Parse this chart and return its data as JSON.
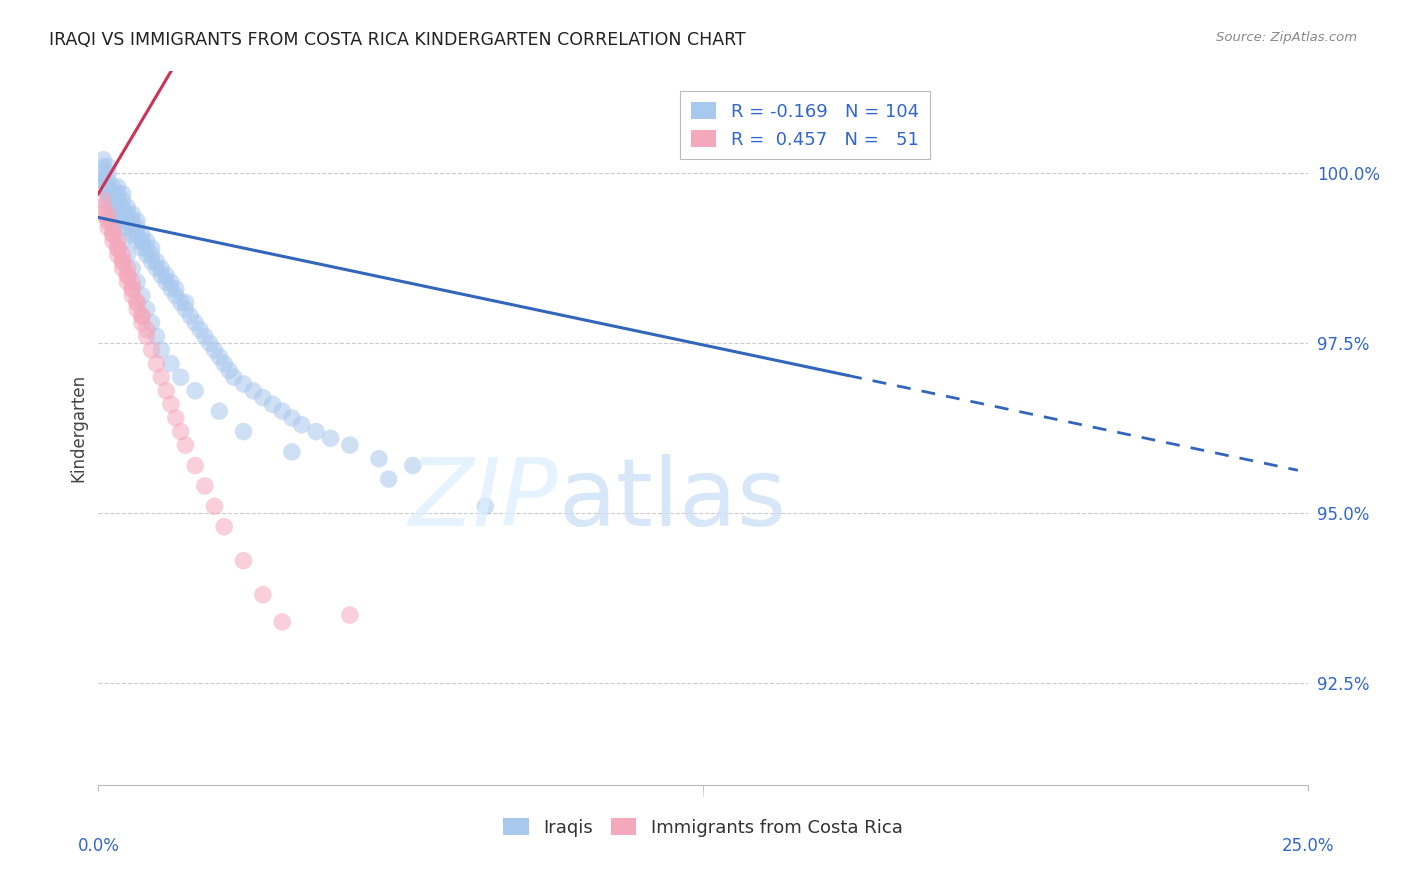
{
  "title": "IRAQI VS IMMIGRANTS FROM COSTA RICA KINDERGARTEN CORRELATION CHART",
  "source": "Source: ZipAtlas.com",
  "ylabel": "Kindergarten",
  "yticks": [
    92.5,
    95.0,
    97.5,
    100.0
  ],
  "ytick_labels": [
    "92.5%",
    "95.0%",
    "97.5%",
    "100.0%"
  ],
  "xlim": [
    0.0,
    0.25
  ],
  "ylim": [
    91.0,
    101.5
  ],
  "legend_labels": [
    "Iraqis",
    "Immigrants from Costa Rica"
  ],
  "blue_R": -0.169,
  "blue_N": 104,
  "pink_R": 0.457,
  "pink_N": 51,
  "blue_color": "#a8c8ee",
  "pink_color": "#f4a8bc",
  "blue_line_color": "#3366bb",
  "pink_line_color": "#cc3355",
  "blue_line_solid_end": 0.155,
  "blue_line_dashed_end": 0.248,
  "pink_line_start": 0.0,
  "pink_line_end": 0.052,
  "blue_scatter": {
    "x": [
      0.001,
      0.001,
      0.001,
      0.001,
      0.001,
      0.002,
      0.002,
      0.002,
      0.002,
      0.002,
      0.003,
      0.003,
      0.003,
      0.003,
      0.004,
      0.004,
      0.004,
      0.004,
      0.004,
      0.005,
      0.005,
      0.005,
      0.005,
      0.005,
      0.006,
      0.006,
      0.006,
      0.006,
      0.007,
      0.007,
      0.007,
      0.007,
      0.008,
      0.008,
      0.008,
      0.008,
      0.009,
      0.009,
      0.009,
      0.01,
      0.01,
      0.01,
      0.011,
      0.011,
      0.011,
      0.012,
      0.012,
      0.013,
      0.013,
      0.014,
      0.014,
      0.015,
      0.015,
      0.016,
      0.016,
      0.017,
      0.018,
      0.018,
      0.019,
      0.02,
      0.021,
      0.022,
      0.023,
      0.024,
      0.025,
      0.026,
      0.027,
      0.028,
      0.03,
      0.032,
      0.034,
      0.036,
      0.038,
      0.04,
      0.042,
      0.045,
      0.048,
      0.052,
      0.058,
      0.065,
      0.002,
      0.003,
      0.004,
      0.005,
      0.006,
      0.007,
      0.008,
      0.009,
      0.01,
      0.011,
      0.012,
      0.013,
      0.015,
      0.017,
      0.02,
      0.025,
      0.03,
      0.04,
      0.06,
      0.08,
      0.001,
      0.002,
      0.003,
      0.004
    ],
    "y": [
      99.8,
      99.9,
      100.0,
      100.1,
      100.2,
      99.7,
      99.8,
      99.9,
      100.0,
      100.1,
      99.5,
      99.6,
      99.7,
      99.8,
      99.4,
      99.5,
      99.6,
      99.7,
      99.8,
      99.3,
      99.4,
      99.5,
      99.6,
      99.7,
      99.2,
      99.3,
      99.4,
      99.5,
      99.1,
      99.2,
      99.3,
      99.4,
      99.0,
      99.1,
      99.2,
      99.3,
      98.9,
      99.0,
      99.1,
      98.8,
      98.9,
      99.0,
      98.7,
      98.8,
      98.9,
      98.6,
      98.7,
      98.5,
      98.6,
      98.4,
      98.5,
      98.3,
      98.4,
      98.2,
      98.3,
      98.1,
      98.0,
      98.1,
      97.9,
      97.8,
      97.7,
      97.6,
      97.5,
      97.4,
      97.3,
      97.2,
      97.1,
      97.0,
      96.9,
      96.8,
      96.7,
      96.6,
      96.5,
      96.4,
      96.3,
      96.2,
      96.1,
      96.0,
      95.8,
      95.7,
      99.6,
      99.4,
      99.2,
      99.0,
      98.8,
      98.6,
      98.4,
      98.2,
      98.0,
      97.8,
      97.6,
      97.4,
      97.2,
      97.0,
      96.8,
      96.5,
      96.2,
      95.9,
      95.5,
      95.1,
      99.9,
      99.7,
      99.5,
      99.3
    ]
  },
  "pink_scatter": {
    "x": [
      0.001,
      0.001,
      0.001,
      0.002,
      0.002,
      0.002,
      0.003,
      0.003,
      0.003,
      0.004,
      0.004,
      0.004,
      0.005,
      0.005,
      0.005,
      0.006,
      0.006,
      0.006,
      0.007,
      0.007,
      0.007,
      0.008,
      0.008,
      0.009,
      0.009,
      0.01,
      0.01,
      0.011,
      0.012,
      0.013,
      0.014,
      0.015,
      0.016,
      0.017,
      0.018,
      0.02,
      0.022,
      0.024,
      0.026,
      0.03,
      0.034,
      0.038,
      0.002,
      0.003,
      0.004,
      0.005,
      0.006,
      0.007,
      0.008,
      0.009,
      0.052
    ],
    "y": [
      99.4,
      99.5,
      99.6,
      99.2,
      99.3,
      99.4,
      99.0,
      99.1,
      99.2,
      98.8,
      98.9,
      99.0,
      98.6,
      98.7,
      98.8,
      98.4,
      98.5,
      98.6,
      98.2,
      98.3,
      98.4,
      98.0,
      98.1,
      97.8,
      97.9,
      97.6,
      97.7,
      97.4,
      97.2,
      97.0,
      96.8,
      96.6,
      96.4,
      96.2,
      96.0,
      95.7,
      95.4,
      95.1,
      94.8,
      94.3,
      93.8,
      93.4,
      99.3,
      99.1,
      98.9,
      98.7,
      98.5,
      98.3,
      98.1,
      97.9,
      93.5
    ]
  },
  "blue_intercept": 99.35,
  "blue_slope": -15.0,
  "pink_intercept": 99.7,
  "pink_slope": 120.0
}
